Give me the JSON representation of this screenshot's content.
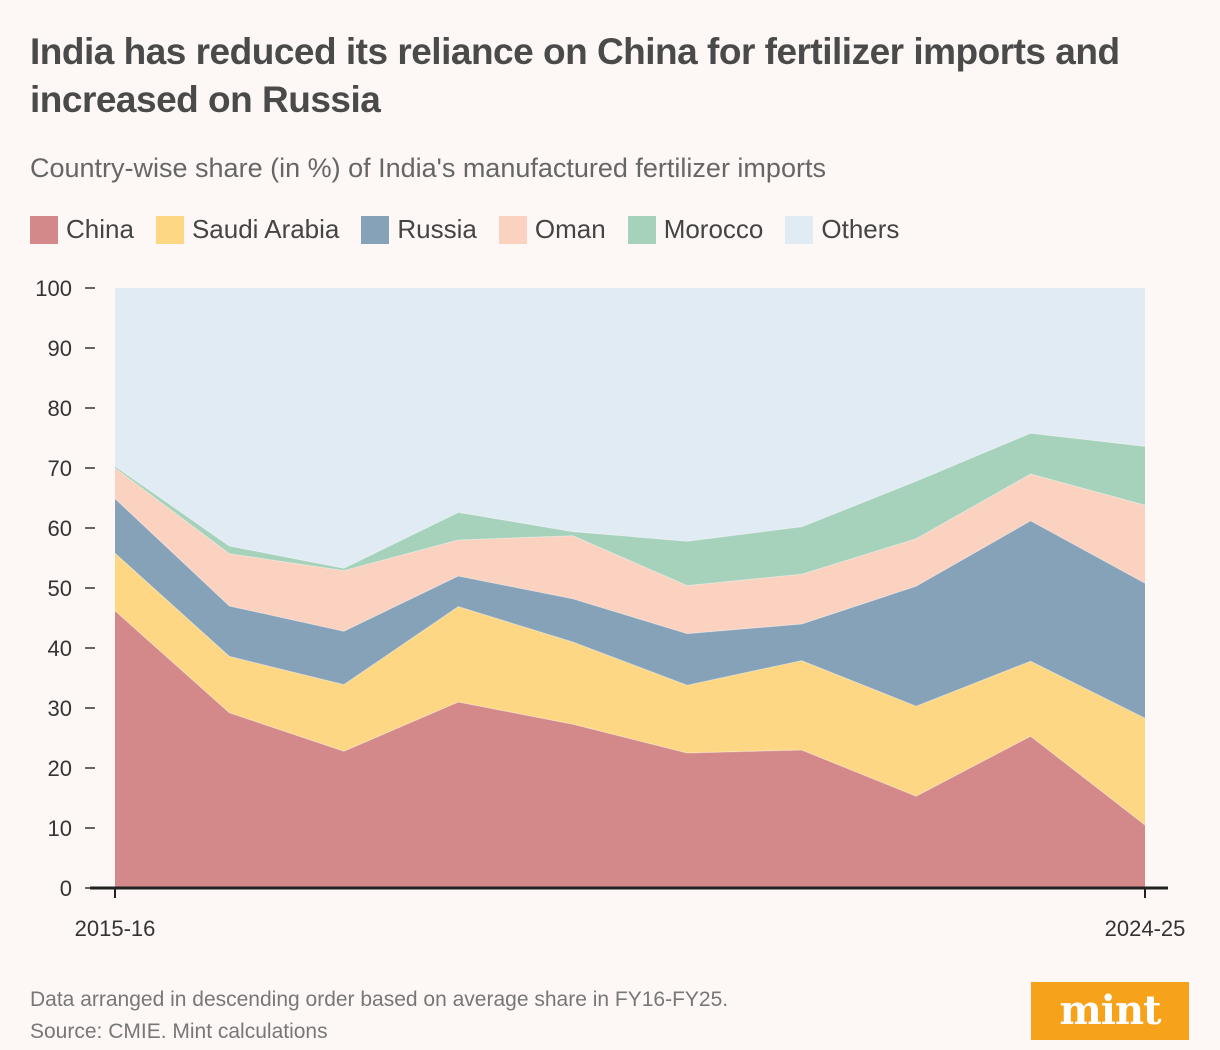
{
  "title": "India has reduced its reliance on China for fertilizer imports and increased on Russia",
  "subtitle": "Country-wise share (in %) of India's manufactured fertilizer imports",
  "footnote": "Data arranged in descending order based on average share in FY16-FY25.",
  "source": "Source: CMIE. Mint calculations",
  "brand": "mint",
  "colors": {
    "China": "#d3898a",
    "Saudi Arabia": "#fdd784",
    "Russia": "#86a2b8",
    "Oman": "#fbd1bf",
    "Morocco": "#a6d2bc",
    "Others": "#e1ebf3",
    "brand": "#f7a21b"
  },
  "chart_data": {
    "type": "area",
    "stacked": true,
    "title": "India has reduced its reliance on China for fertilizer imports and increased on Russia",
    "ylabel": "Country-wise share (in %)",
    "ylim": [
      0,
      100
    ],
    "yticks": [
      0,
      10,
      20,
      30,
      40,
      50,
      60,
      70,
      80,
      90,
      100
    ],
    "x": [
      "2015-16",
      "2016-17",
      "2017-18",
      "2018-19",
      "2019-20",
      "2020-21",
      "2021-22",
      "2022-23",
      "2023-24",
      "2024-25"
    ],
    "x_tick_labels": [
      "2015-16",
      "2024-25"
    ],
    "legend_position": "top-left",
    "series": [
      {
        "name": "China",
        "values": [
          46.2,
          29.2,
          22.8,
          31.0,
          27.3,
          22.5,
          23.0,
          15.3,
          25.3,
          10.5
        ]
      },
      {
        "name": "Saudi Arabia",
        "values": [
          9.6,
          9.4,
          11.1,
          15.9,
          13.7,
          11.3,
          14.9,
          15.0,
          12.5,
          17.8
        ]
      },
      {
        "name": "Russia",
        "values": [
          9.1,
          8.4,
          8.9,
          5.1,
          7.2,
          8.6,
          6.1,
          20.0,
          23.4,
          22.5
        ]
      },
      {
        "name": "Oman",
        "values": [
          5.1,
          8.7,
          10.1,
          6.0,
          10.5,
          8.0,
          8.3,
          7.9,
          7.8,
          13.0
        ]
      },
      {
        "name": "Morocco",
        "values": [
          0.3,
          1.3,
          0.4,
          4.6,
          0.7,
          7.4,
          7.9,
          9.6,
          6.8,
          9.8
        ]
      },
      {
        "name": "Others",
        "values": [
          29.7,
          43.0,
          46.7,
          37.4,
          40.6,
          42.2,
          39.8,
          32.2,
          24.2,
          26.4
        ]
      }
    ]
  }
}
